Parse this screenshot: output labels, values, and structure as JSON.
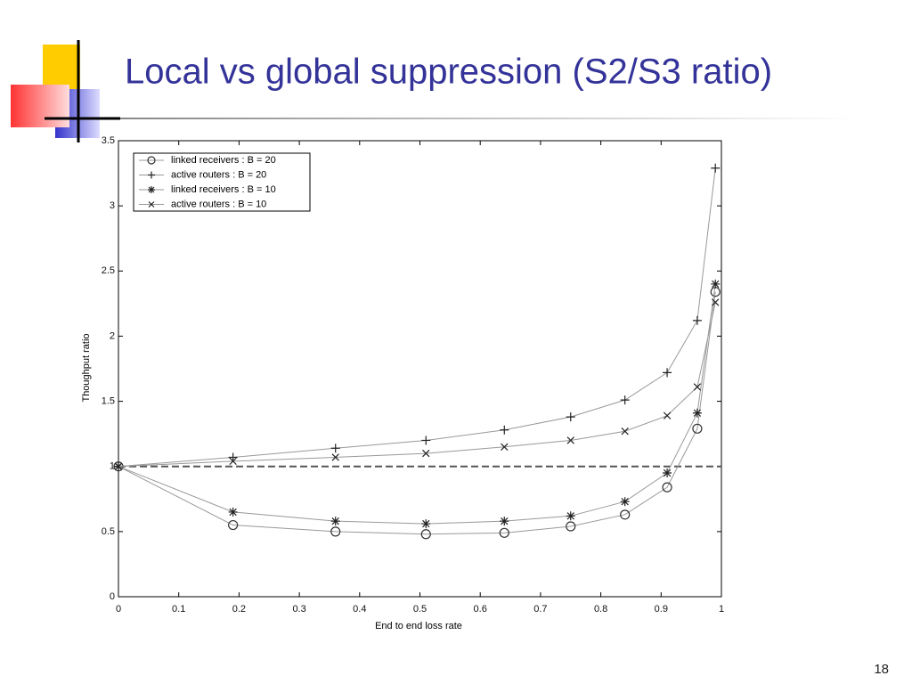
{
  "title": "Local vs global suppression (S2/S3 ratio)",
  "page_number": "18",
  "chart_data": {
    "type": "line",
    "xlabel": "End to end loss rate",
    "ylabel": "Thoughput ratio",
    "x": [
      0,
      0.19,
      0.36,
      0.51,
      0.64,
      0.75,
      0.84,
      0.91,
      0.96,
      0.99
    ],
    "series": [
      {
        "name": "linked receivers : B = 20",
        "marker": "o",
        "color": "#999999",
        "values": [
          1,
          0.55,
          0.5,
          0.48,
          0.49,
          0.54,
          0.63,
          0.84,
          1.29,
          2.34
        ]
      },
      {
        "name": "active routers : B = 20",
        "marker": "+",
        "color": "#999999",
        "values": [
          1,
          1.07,
          1.14,
          1.2,
          1.28,
          1.38,
          1.51,
          1.72,
          2.12,
          3.29
        ]
      },
      {
        "name": "linked receivers : B = 10",
        "marker": "*",
        "color": "#999999",
        "values": [
          1,
          0.65,
          0.58,
          0.56,
          0.58,
          0.62,
          0.73,
          0.95,
          1.41,
          2.4
        ]
      },
      {
        "name": "active routers : B = 10",
        "marker": "x",
        "color": "#999999",
        "values": [
          1,
          1.04,
          1.07,
          1.1,
          1.15,
          1.2,
          1.27,
          1.39,
          1.61,
          2.26
        ]
      }
    ],
    "hline": 1,
    "xlim": [
      0,
      1
    ],
    "xticks": [
      0,
      0.1,
      0.2,
      0.3,
      0.4,
      0.5,
      0.6,
      0.7,
      0.8,
      0.9,
      1
    ],
    "ylim": [
      0,
      3.5
    ],
    "yticks": [
      0,
      0.5,
      1,
      1.5,
      2,
      2.5,
      3,
      3.5
    ],
    "legend": "upper left"
  }
}
